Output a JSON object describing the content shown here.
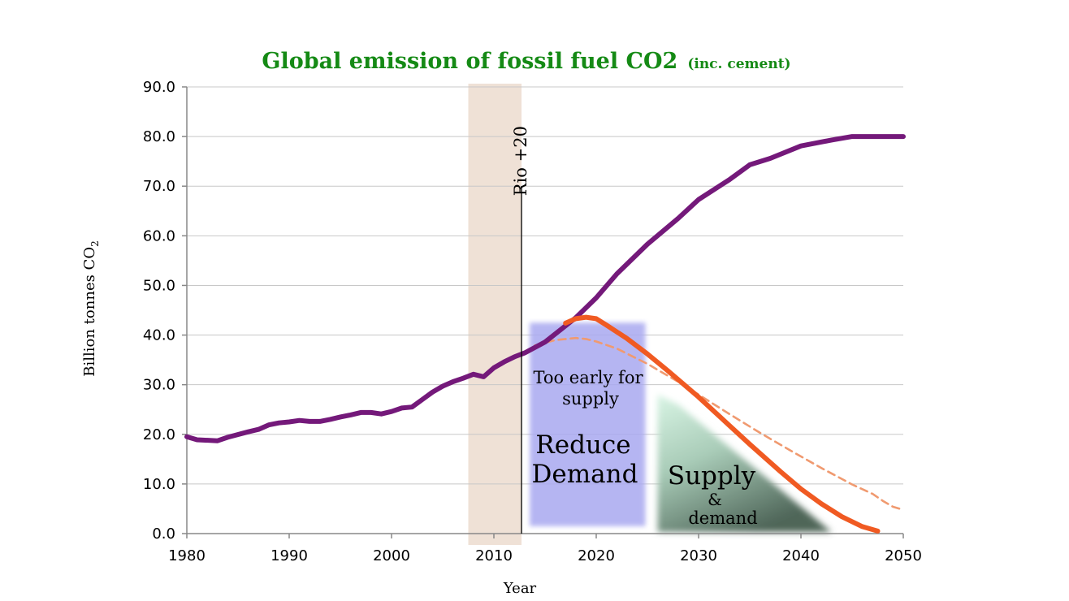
{
  "chart_data": {
    "type": "line",
    "title": "Global emission of fossil fuel CO2",
    "title_suffix": "(inc. cement)",
    "xlabel": "Year",
    "ylabel": "Billion tonnes CO",
    "ylabel_sub": "2",
    "xlim": [
      1980,
      2050
    ],
    "ylim": [
      0,
      90
    ],
    "x_ticks": [
      "1980",
      "1990",
      "2000",
      "2010",
      "2020",
      "2030",
      "2040",
      "2050"
    ],
    "y_ticks": [
      "0.0",
      "10.0",
      "20.0",
      "30.0",
      "40.0",
      "50.0",
      "60.0",
      "70.0",
      "80.0",
      "90.0"
    ],
    "grid": true,
    "series": [
      {
        "color": "#74197a",
        "style": "solid",
        "points": [
          [
            1980,
            19.5
          ],
          [
            1981,
            18.9
          ],
          [
            1983,
            18.7
          ],
          [
            1984,
            19.4
          ],
          [
            1986,
            20.5
          ],
          [
            1987,
            21.0
          ],
          [
            1988,
            21.9
          ],
          [
            1989,
            22.3
          ],
          [
            1990,
            22.5
          ],
          [
            1991,
            22.8
          ],
          [
            1992,
            22.6
          ],
          [
            1993,
            22.6
          ],
          [
            1994,
            23.0
          ],
          [
            1995,
            23.5
          ],
          [
            1996,
            23.9
          ],
          [
            1997,
            24.4
          ],
          [
            1998,
            24.4
          ],
          [
            1999,
            24.1
          ],
          [
            2000,
            24.6
          ],
          [
            2001,
            25.3
          ],
          [
            2002,
            25.5
          ],
          [
            2003,
            27.0
          ],
          [
            2004,
            28.5
          ],
          [
            2005,
            29.7
          ],
          [
            2006,
            30.6
          ],
          [
            2007,
            31.3
          ],
          [
            2008,
            32.1
          ],
          [
            2009,
            31.6
          ],
          [
            2010,
            33.4
          ],
          [
            2011,
            34.6
          ],
          [
            2012,
            35.6
          ],
          [
            2013,
            36.4
          ],
          [
            2015,
            38.6
          ],
          [
            2018,
            43.5
          ],
          [
            2020,
            47.5
          ],
          [
            2022,
            52.3
          ],
          [
            2025,
            58.3
          ],
          [
            2028,
            63.5
          ],
          [
            2030,
            67.3
          ],
          [
            2033,
            71.3
          ],
          [
            2035,
            74.3
          ],
          [
            2037,
            75.6
          ],
          [
            2040,
            78.1
          ],
          [
            2043,
            79.3
          ],
          [
            2045,
            80.0
          ],
          [
            2050,
            80.0
          ]
        ]
      },
      {
        "color": "#f05a22",
        "style": "solid",
        "points": [
          [
            2017,
            42.4
          ],
          [
            2018,
            43.3
          ],
          [
            2019,
            43.6
          ],
          [
            2020,
            43.3
          ],
          [
            2021,
            42.0
          ],
          [
            2023,
            39.3
          ],
          [
            2025,
            36.2
          ],
          [
            2027,
            32.8
          ],
          [
            2030,
            27.5
          ],
          [
            2033,
            21.8
          ],
          [
            2035,
            18.0
          ],
          [
            2038,
            12.5
          ],
          [
            2040,
            9.0
          ],
          [
            2042,
            6.0
          ],
          [
            2044,
            3.4
          ],
          [
            2046,
            1.4
          ],
          [
            2047.5,
            0.5
          ]
        ]
      },
      {
        "color": "#f09a70",
        "style": "dashed",
        "points": [
          [
            2014,
            37.9
          ],
          [
            2016,
            39.0
          ],
          [
            2018,
            39.4
          ],
          [
            2019,
            39.2
          ],
          [
            2020,
            38.7
          ],
          [
            2022,
            37.3
          ],
          [
            2025,
            34.2
          ],
          [
            2028,
            30.6
          ],
          [
            2030,
            28.0
          ],
          [
            2033,
            24.1
          ],
          [
            2036,
            20.3
          ],
          [
            2039,
            16.7
          ],
          [
            2042,
            13.2
          ],
          [
            2045,
            9.9
          ],
          [
            2047,
            8.0
          ],
          [
            2048,
            6.6
          ],
          [
            2049,
            5.4
          ],
          [
            2050,
            4.8
          ]
        ]
      }
    ],
    "shaded_band": {
      "x_from": 2007.5,
      "x_to": 2012.7,
      "color": "#efe1d6"
    },
    "vertical_marker": {
      "x": 2012.7,
      "y_top": 70,
      "label": "Rio +20"
    },
    "regions": [
      {
        "label_top": "Too early for",
        "label_bottom": "supply",
        "x_from": 2013.5,
        "x_to": 2024.8,
        "color": "#a9a9f0"
      },
      {
        "label_top": "Reduce",
        "label_bottom": "Demand",
        "color": "#a9a9f0"
      },
      {
        "label_top": "Supply",
        "label_mid": "&",
        "label_bottom": "demand",
        "x_from": 2026,
        "x_to": 2043,
        "color_top": "#d5f3e3",
        "color_bottom": "#556b5e"
      }
    ]
  },
  "colors": {
    "title": "#158a15",
    "grid": "#c8c8c8",
    "axis": "#888888"
  }
}
